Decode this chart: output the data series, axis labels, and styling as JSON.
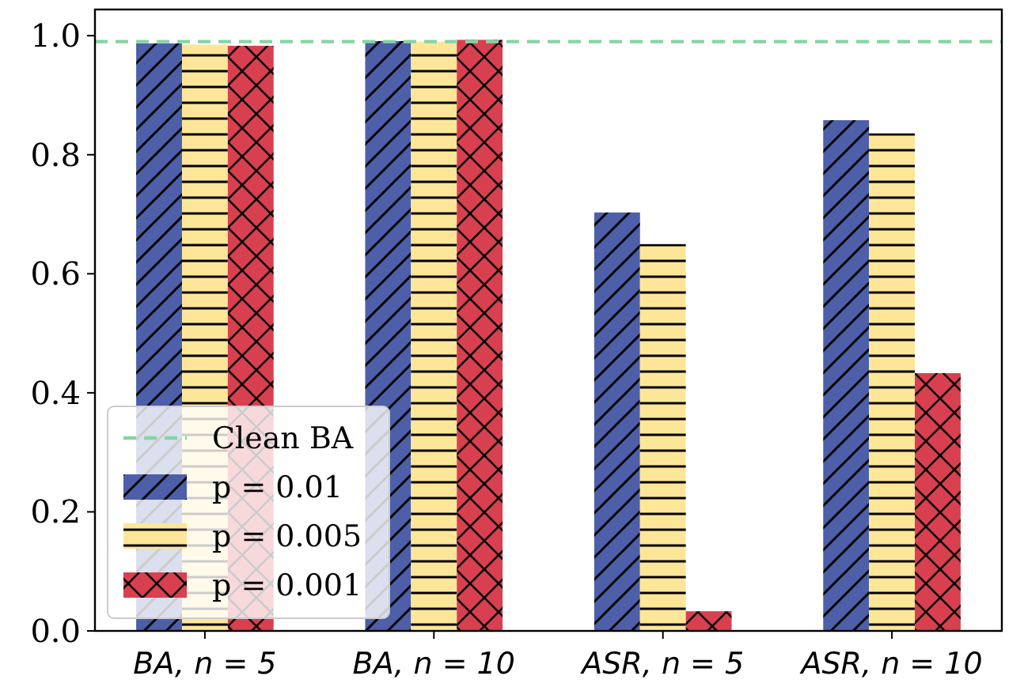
{
  "chart_data": {
    "type": "bar",
    "categories": [
      "BA, n = 5",
      "BA, n = 10",
      "ASR, n = 5",
      "ASR, n = 10"
    ],
    "series": [
      {
        "name": "p = 0.01",
        "color": "#4c5fa8",
        "values": [
          0.987,
          0.991,
          0.703,
          0.858
        ]
      },
      {
        "name": "p = 0.005",
        "color": "#fee698",
        "values": [
          0.985,
          0.99,
          0.65,
          0.836
        ]
      },
      {
        "name": "p = 0.001",
        "color": "#d8404f",
        "values": [
          0.983,
          0.993,
          0.033,
          0.433
        ]
      }
    ],
    "ylim": [
      0,
      1.044
    ],
    "yticks": [
      {
        "value": 0,
        "label": "0.0"
      },
      0.2,
      0.4,
      0.6,
      0.8,
      {
        "value": 1,
        "label": "1.0"
      }
    ],
    "ref_lines": [
      {
        "axis": "y",
        "value": 0.99,
        "label": "Clean BA",
        "color": "#88d3a5",
        "line_style": "dashed"
      }
    ],
    "legend": "bottom left",
    "grid": false
  }
}
